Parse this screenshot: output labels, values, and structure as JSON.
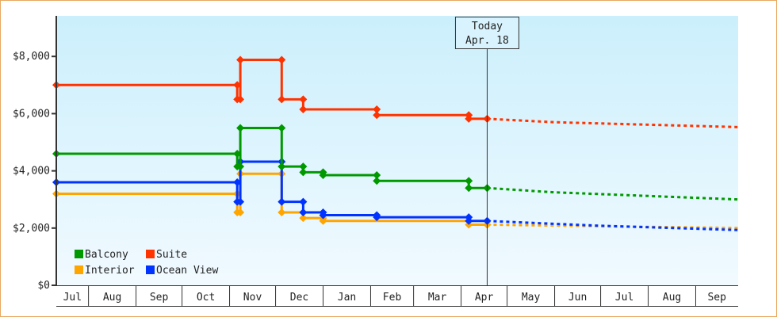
{
  "chart_data": {
    "type": "line",
    "title": "",
    "xlabel": "",
    "ylabel": "",
    "x_range": [
      "Jul 11",
      "Sep 29"
    ],
    "ylim": [
      0,
      9300
    ],
    "y_ticks": [
      0,
      2000,
      4000,
      6000,
      8000
    ],
    "y_tick_labels": [
      "$0",
      "$2,000",
      "$4,000",
      "$6,000",
      "$8,000"
    ],
    "x_tick_labels": [
      "Jul",
      "Aug",
      "Sep",
      "Oct",
      "Nov",
      "Dec",
      "Jan",
      "Feb",
      "Mar",
      "Apr",
      "May",
      "Jun",
      "Jul",
      "Aug",
      "Sep"
    ],
    "grid": false,
    "legend_placement": "bottom-left",
    "step": "after",
    "today": {
      "label": "Today",
      "date_label": "Apr. 18",
      "x": "Apr 18"
    },
    "series": [
      {
        "name": "Suite",
        "color": "#ff3300",
        "points": [
          [
            "Jul 11",
            7000
          ],
          [
            "Nov 6",
            6500
          ],
          [
            "Nov 8",
            7880
          ],
          [
            "Dec 5",
            6500
          ],
          [
            "Dec 19",
            6150
          ],
          [
            "Feb 5",
            5950
          ],
          [
            "Apr 6",
            5820
          ],
          [
            "Apr 18",
            5820
          ]
        ],
        "forecast": [
          [
            "Apr 18",
            5820
          ],
          [
            "Jun 1",
            5700
          ],
          [
            "Sep 29",
            5530
          ]
        ]
      },
      {
        "name": "Balcony",
        "color": "#009900",
        "points": [
          [
            "Jul 11",
            4600
          ],
          [
            "Nov 6",
            4150
          ],
          [
            "Nov 8",
            5500
          ],
          [
            "Dec 5",
            4150
          ],
          [
            "Dec 19",
            3950
          ],
          [
            "Jan 1",
            3850
          ],
          [
            "Feb 5",
            3650
          ],
          [
            "Apr 6",
            3400
          ],
          [
            "Apr 18",
            3400
          ]
        ],
        "forecast": [
          [
            "Apr 18",
            3400
          ],
          [
            "Jun 1",
            3250
          ],
          [
            "Sep 29",
            3000
          ]
        ]
      },
      {
        "name": "Ocean View",
        "color": "#0033ff",
        "points": [
          [
            "Jul 11",
            3600
          ],
          [
            "Nov 6",
            2920
          ],
          [
            "Nov 8",
            4320
          ],
          [
            "Dec 5",
            2920
          ],
          [
            "Dec 19",
            2550
          ],
          [
            "Jan 1",
            2450
          ],
          [
            "Feb 5",
            2380
          ],
          [
            "Apr 6",
            2250
          ],
          [
            "Apr 18",
            2250
          ]
        ],
        "forecast": [
          [
            "Apr 18",
            2250
          ],
          [
            "Jul 1",
            2080
          ],
          [
            "Sep 29",
            1930
          ]
        ]
      },
      {
        "name": "Interior",
        "color": "#ffa500",
        "points": [
          [
            "Jul 11",
            3200
          ],
          [
            "Nov 6",
            2550
          ],
          [
            "Nov 8",
            3900
          ],
          [
            "Dec 5",
            2550
          ],
          [
            "Dec 19",
            2350
          ],
          [
            "Jan 1",
            2250
          ],
          [
            "Apr 6",
            2120
          ],
          [
            "Apr 18",
            2120
          ]
        ],
        "forecast": [
          [
            "Apr 18",
            2120
          ],
          [
            "Sep 29",
            2000
          ]
        ]
      }
    ],
    "legend": [
      {
        "name": "Balcony",
        "color": "#009900"
      },
      {
        "name": "Suite",
        "color": "#ff3300"
      },
      {
        "name": "Interior",
        "color": "#ffa500"
      },
      {
        "name": "Ocean View",
        "color": "#0033ff"
      }
    ]
  }
}
